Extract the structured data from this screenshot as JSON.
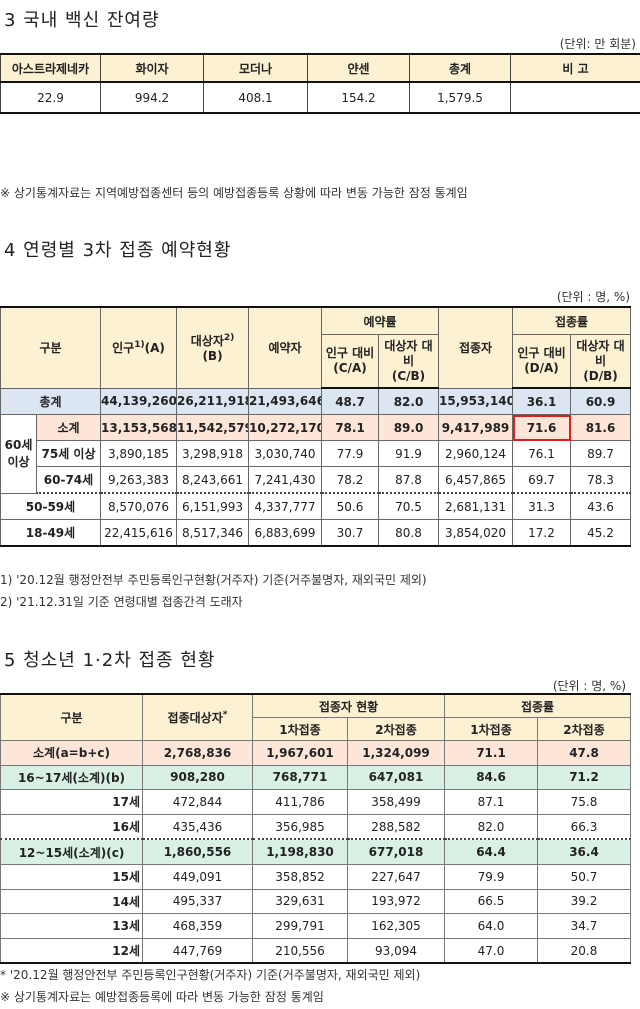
{
  "section3": {
    "title": "3 국내 백신 잔여량",
    "unit": "(단위: 만 회분)",
    "headers": [
      "아스트라제네카",
      "화이자",
      "모더나",
      "얀센",
      "총계",
      "비 고"
    ],
    "values": [
      "22.9",
      "994.2",
      "408.1",
      "154.2",
      "1,579.5",
      ""
    ],
    "note": "※ 상기통계자료는 지역예방접종센터 등의 예방접종등록 상황에 따라 변동 가능한 잠정 통계임"
  },
  "section4": {
    "title": "4 연령별 3차 접종 예약현황",
    "unit": "(단위 : 명, %)",
    "headers": {
      "category": "구분",
      "population": "인구",
      "population_sup": "1)",
      "population_code": "(A)",
      "target": "대상자",
      "target_sup": "2)",
      "target_code": "(B)",
      "reserved": "예약자",
      "reservation_rate": "예약률",
      "pop_ratio": "인구 대비",
      "pop_ratio_code": "(C/A)",
      "target_ratio": "대상자 대비",
      "target_ratio_code": "(C/B)",
      "vaccinated": "접종자",
      "vaccination_rate": "접종률",
      "pop_ratio2": "인구 대비",
      "pop_ratio2_code": "(D/A)",
      "target_ratio2": "대상자 대비",
      "target_ratio2_code": "(D/B)"
    },
    "group_60_label": "60세 이상",
    "rows": [
      {
        "label": "총계",
        "c": [
          "44,139,260",
          "26,211,918",
          "21,493,646",
          "48.7",
          "82.0",
          "15,953,140",
          "36.1",
          "60.9"
        ]
      },
      {
        "label": "소계",
        "c": [
          "13,153,568",
          "11,542,579",
          "10,272,170",
          "78.1",
          "89.0",
          "9,417,989",
          "71.6",
          "81.6"
        ]
      },
      {
        "label": "75세 이상",
        "c": [
          "3,890,185",
          "3,298,918",
          "3,030,740",
          "77.9",
          "91.9",
          "2,960,124",
          "76.1",
          "89.7"
        ]
      },
      {
        "label": "60-74세",
        "c": [
          "9,263,383",
          "8,243,661",
          "7,241,430",
          "78.2",
          "87.8",
          "6,457,865",
          "69.7",
          "78.3"
        ]
      },
      {
        "label": "50-59세",
        "c": [
          "8,570,076",
          "6,151,993",
          "4,337,777",
          "50.6",
          "70.5",
          "2,681,131",
          "31.3",
          "43.6"
        ]
      },
      {
        "label": "18-49세",
        "c": [
          "22,415,616",
          "8,517,346",
          "6,883,699",
          "30.7",
          "80.8",
          "3,854,020",
          "17.2",
          "45.2"
        ]
      }
    ],
    "footnote1": "1) '20.12월 행정안전부 주민등록인구현황(거주자) 기준(거주불명자, 재외국민 제외)",
    "footnote2": "2) '21.12.31일 기준 연령대별 접종간격 도래자"
  },
  "section5": {
    "title": "5 청소년 1·2차 접종 현황",
    "unit": "(단위 : 명, %)",
    "headers": {
      "category": "구분",
      "target": "접종대상자",
      "target_sup": "*",
      "status": "접종자 현황",
      "rate": "접종률",
      "dose1": "1차접종",
      "dose2": "2차접종",
      "rate1": "1차접종",
      "rate2": "2차접종"
    },
    "rows": [
      {
        "label": "소계(a=b+c)",
        "c": [
          "2,768,836",
          "1,967,601",
          "1,324,099",
          "71.1",
          "47.8"
        ]
      },
      {
        "label": "16~17세(소계)(b)",
        "c": [
          "908,280",
          "768,771",
          "647,081",
          "84.6",
          "71.2"
        ]
      },
      {
        "label": "17세",
        "c": [
          "472,844",
          "411,786",
          "358,499",
          "87.1",
          "75.8"
        ]
      },
      {
        "label": "16세",
        "c": [
          "435,436",
          "356,985",
          "288,582",
          "82.0",
          "66.3"
        ]
      },
      {
        "label": "12~15세(소계)(c)",
        "c": [
          "1,860,556",
          "1,198,830",
          "677,018",
          "64.4",
          "36.4"
        ]
      },
      {
        "label": "15세",
        "c": [
          "449,091",
          "358,852",
          "227,647",
          "79.9",
          "50.7"
        ]
      },
      {
        "label": "14세",
        "c": [
          "495,337",
          "329,631",
          "193,972",
          "66.5",
          "39.2"
        ]
      },
      {
        "label": "13세",
        "c": [
          "468,359",
          "299,791",
          "162,305",
          "64.0",
          "34.7"
        ]
      },
      {
        "label": "12세",
        "c": [
          "447,769",
          "210,556",
          "93,094",
          "47.0",
          "20.8"
        ]
      }
    ],
    "footnote1": " * '20.12월 행정안전부 주민등록인구현황(거주자) 기준(거주불명자, 재외국민 제외)",
    "footnote2": "※ 상기통계자료는 예방접종등록에 따라 변동 가능한 잠정 통계임"
  }
}
